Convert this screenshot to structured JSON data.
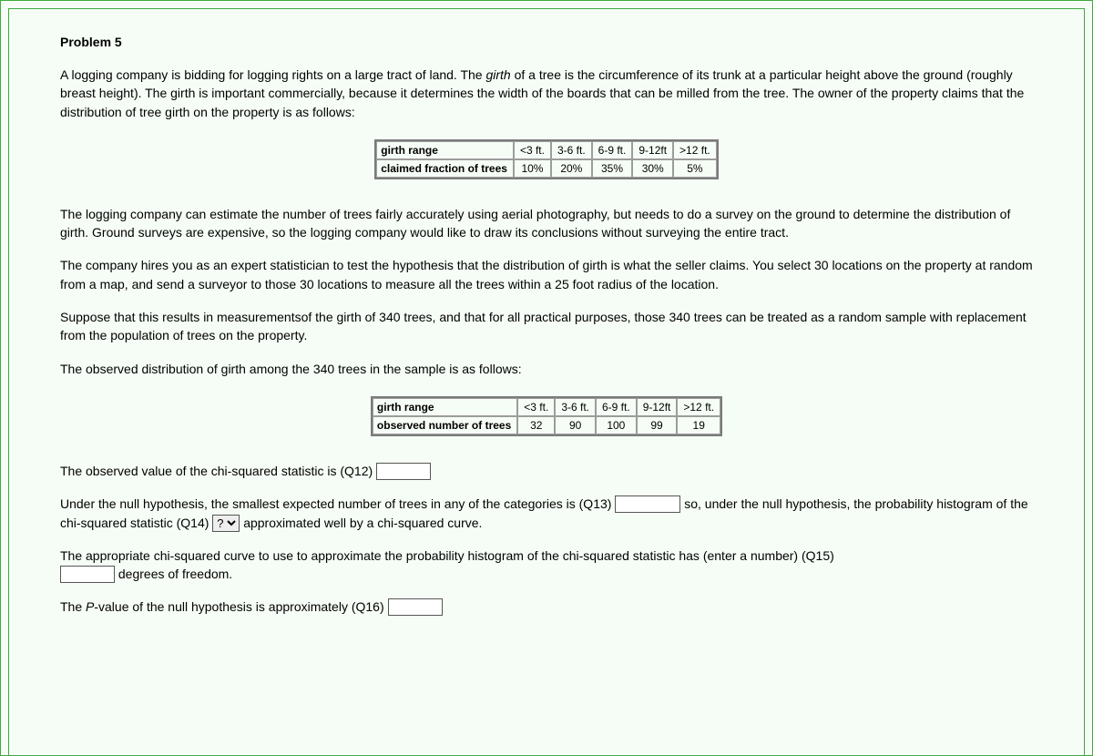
{
  "heading": "Problem 5",
  "intro_html": "A logging company is bidding for logging rights on a large tract of land. The <span class=\"italic\">girth</span> of a tree is the circumference of its trunk at a particular height above the ground (roughly breast height). The girth is important commercially, because it determines the width of the boards that can be milled from the tree. The owner of the property claims that the distribution of tree girth on the property is as follows:",
  "table1": {
    "row1_label": "girth range",
    "row2_label": "claimed fraction of trees",
    "cols": [
      "<3 ft.",
      "3-6 ft.",
      "6-9 ft.",
      "9-12ft",
      ">12 ft."
    ],
    "vals": [
      "10%",
      "20%",
      "35%",
      "30%",
      "5%"
    ]
  },
  "para2": "The logging company can estimate the number of trees fairly accurately using aerial photography, but needs to do a survey on the ground to determine the distribution of girth. Ground surveys are expensive, so the logging company would like to draw its conclusions without surveying the entire tract.",
  "para3": "The company hires you as an expert statistician to test the hypothesis that the distribution of girth is what the seller claims. You select 30 locations on the property at random from a map, and send a surveyor to those 30 locations to measure all the trees within a 25 foot radius of the location.",
  "para4": "Suppose that this results in measurementsof the girth of 340 trees, and that for all practical purposes, those 340 trees can be treated as a random sample with replacement from the population of trees on the property.",
  "para5": "The observed distribution of girth among the 340 trees in the sample is as follows:",
  "table2": {
    "row1_label": "girth range",
    "row2_label": "observed number of trees",
    "cols": [
      "<3 ft.",
      "3-6 ft.",
      "6-9 ft.",
      "9-12ft",
      ">12 ft."
    ],
    "vals": [
      "32",
      "90",
      "100",
      "99",
      "19"
    ]
  },
  "q12_text": "The observed value of the chi-squared statistic is (Q12) ",
  "q13_pre": "Under the null hypothesis, the smallest expected number of trees in any of the categories is (Q13) ",
  "q13_post": " so, under the null hypothesis, the probability histogram of the chi-squared statistic (Q14) ",
  "q14_option": "?",
  "q14_after": " approximated well by a chi-squared curve.",
  "q15_pre": "The appropriate chi-squared curve to use to approximate the probability histogram of the chi-squared statistic has (enter a number) (Q15) ",
  "q15_post": " degrees of freedom.",
  "q16_pre_html": "The <span class=\"pval\">P</span>-value of the null hypothesis is approximately (Q16) "
}
